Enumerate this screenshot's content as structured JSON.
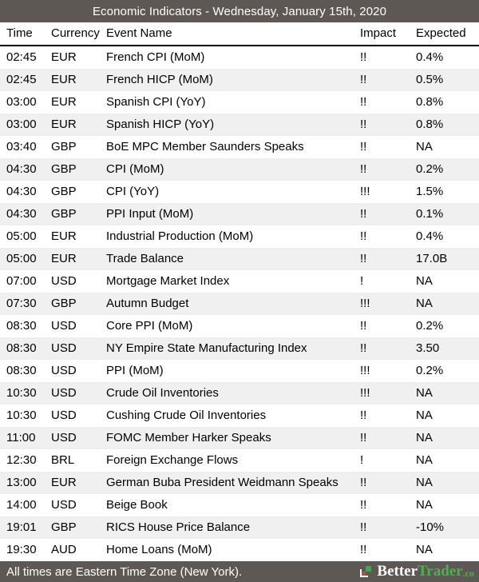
{
  "header": {
    "title": "Economic Indicators - Wednesday, January 15th, 2020"
  },
  "table": {
    "columns": [
      "Time",
      "Currency",
      "Event Name",
      "Impact",
      "Expected"
    ],
    "rows": [
      {
        "time": "02:45",
        "currency": "EUR",
        "event": "French CPI (MoM)",
        "impact": "!!",
        "expected": "0.4%"
      },
      {
        "time": "02:45",
        "currency": "EUR",
        "event": "French HICP (MoM)",
        "impact": "!!",
        "expected": "0.5%"
      },
      {
        "time": "03:00",
        "currency": "EUR",
        "event": "Spanish CPI (YoY)",
        "impact": "!!",
        "expected": "0.8%"
      },
      {
        "time": "03:00",
        "currency": "EUR",
        "event": "Spanish HICP (YoY)",
        "impact": "!!",
        "expected": "0.8%"
      },
      {
        "time": "03:40",
        "currency": "GBP",
        "event": "BoE MPC Member Saunders Speaks",
        "impact": "!!",
        "expected": "NA"
      },
      {
        "time": "04:30",
        "currency": "GBP",
        "event": "CPI (MoM)",
        "impact": "!!",
        "expected": "0.2%"
      },
      {
        "time": "04:30",
        "currency": "GBP",
        "event": "CPI (YoY)",
        "impact": "!!!",
        "expected": "1.5%"
      },
      {
        "time": "04:30",
        "currency": "GBP",
        "event": "PPI Input (MoM)",
        "impact": "!!",
        "expected": "0.1%"
      },
      {
        "time": "05:00",
        "currency": "EUR",
        "event": "Industrial Production (MoM)",
        "impact": "!!",
        "expected": "0.4%"
      },
      {
        "time": "05:00",
        "currency": "EUR",
        "event": "Trade Balance",
        "impact": "!!",
        "expected": "17.0B"
      },
      {
        "time": "07:00",
        "currency": "USD",
        "event": "Mortgage Market Index",
        "impact": "!",
        "expected": "NA"
      },
      {
        "time": "07:30",
        "currency": "GBP",
        "event": "Autumn Budget",
        "impact": "!!!",
        "expected": "NA"
      },
      {
        "time": "08:30",
        "currency": "USD",
        "event": "Core PPI (MoM)",
        "impact": "!!",
        "expected": "0.2%"
      },
      {
        "time": "08:30",
        "currency": "USD",
        "event": "NY Empire State Manufacturing Index",
        "impact": "!!",
        "expected": "3.50"
      },
      {
        "time": "08:30",
        "currency": "USD",
        "event": "PPI (MoM)",
        "impact": "!!!",
        "expected": "0.2%"
      },
      {
        "time": "10:30",
        "currency": "USD",
        "event": "Crude Oil Inventories",
        "impact": "!!!",
        "expected": "NA"
      },
      {
        "time": "10:30",
        "currency": "USD",
        "event": "Cushing Crude Oil Inventories",
        "impact": "!!",
        "expected": "NA"
      },
      {
        "time": "11:00",
        "currency": "USD",
        "event": "FOMC Member Harker Speaks",
        "impact": "!!",
        "expected": "NA"
      },
      {
        "time": "12:30",
        "currency": "BRL",
        "event": "Foreign Exchange Flows",
        "impact": "!",
        "expected": "NA"
      },
      {
        "time": "13:00",
        "currency": "EUR",
        "event": "German Buba President Weidmann Speaks",
        "impact": "!!",
        "expected": "NA"
      },
      {
        "time": "14:00",
        "currency": "USD",
        "event": "Beige Book",
        "impact": "!!",
        "expected": "NA"
      },
      {
        "time": "19:01",
        "currency": "GBP",
        "event": "RICS House Price Balance",
        "impact": "!!",
        "expected": "-10%"
      },
      {
        "time": "19:30",
        "currency": "AUD",
        "event": "Home Loans (MoM)",
        "impact": "!!",
        "expected": "NA"
      }
    ]
  },
  "footer": {
    "note": "All times are Eastern Time Zone (New York).",
    "brand_better": "Better",
    "brand_trader": "Trader",
    "brand_co": ".co"
  },
  "colors": {
    "bar_background": "#5e5854",
    "row_alternate": "#f0f0f0",
    "brand_green": "#4caf50",
    "logo_red": "#c54545",
    "logo_green": "#4aa34a"
  }
}
